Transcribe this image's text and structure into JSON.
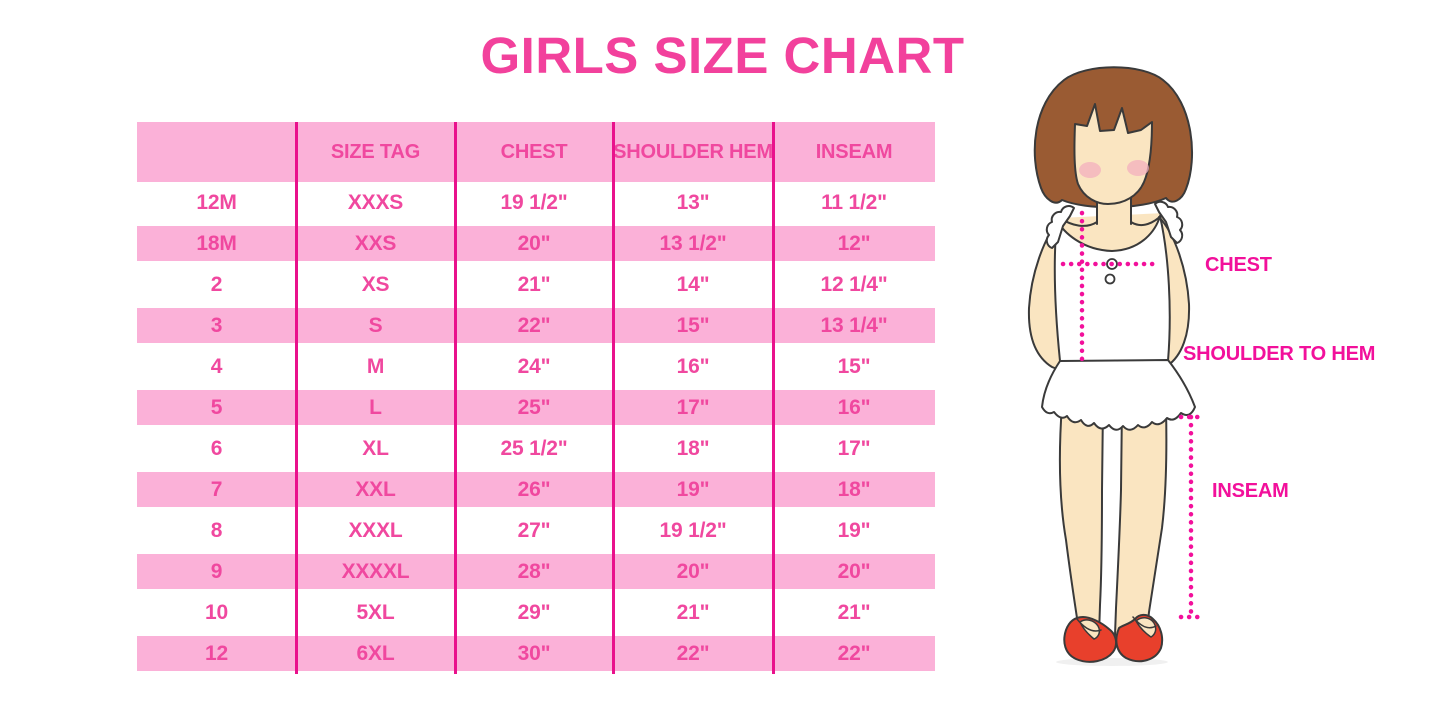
{
  "title": "GIRLS SIZE CHART",
  "table": {
    "columns": [
      "",
      "SIZE TAG",
      "CHEST",
      "SHOULDER HEM",
      "INSEAM"
    ],
    "rows": [
      [
        "12M",
        "XXXS",
        "19 1/2\"",
        "13\"",
        "11 1/2\""
      ],
      [
        "18M",
        "XXS",
        "20\"",
        "13 1/2\"",
        "12\""
      ],
      [
        "2",
        "XS",
        "21\"",
        "14\"",
        "12 1/4\""
      ],
      [
        "3",
        "S",
        "22\"",
        "15\"",
        "13 1/4\""
      ],
      [
        "4",
        "M",
        "24\"",
        "16\"",
        "15\""
      ],
      [
        "5",
        "L",
        "25\"",
        "17\"",
        "16\""
      ],
      [
        "6",
        "XL",
        "25 1/2\"",
        "18\"",
        "17\""
      ],
      [
        "7",
        "XXL",
        "26\"",
        "19\"",
        "18\""
      ],
      [
        "8",
        "XXXL",
        "27\"",
        "19 1/2\"",
        "19\""
      ],
      [
        "9",
        "XXXXL",
        "28\"",
        "20\"",
        "20\""
      ],
      [
        "10",
        "5XL",
        "29\"",
        "21\"",
        "21\""
      ],
      [
        "12",
        "6XL",
        "30\"",
        "22\"",
        "22\""
      ]
    ]
  },
  "diagram": {
    "chest_label": "CHEST",
    "shoulder_to_hem_label": "SHOULDER TO HEM",
    "inseam_label": "INSEAM"
  },
  "colors": {
    "title_pink": "#F2419C",
    "row_pink": "#FBB1D8",
    "table_text_pink": "#F0489F",
    "grid_line_magenta": "#E9118C",
    "measure_magenta": "#F2109B",
    "skin": "#FAE5C1",
    "hair_brown": "#9A5B33",
    "blush": "#F3AFBE",
    "shoe_red": "#E8402C"
  }
}
